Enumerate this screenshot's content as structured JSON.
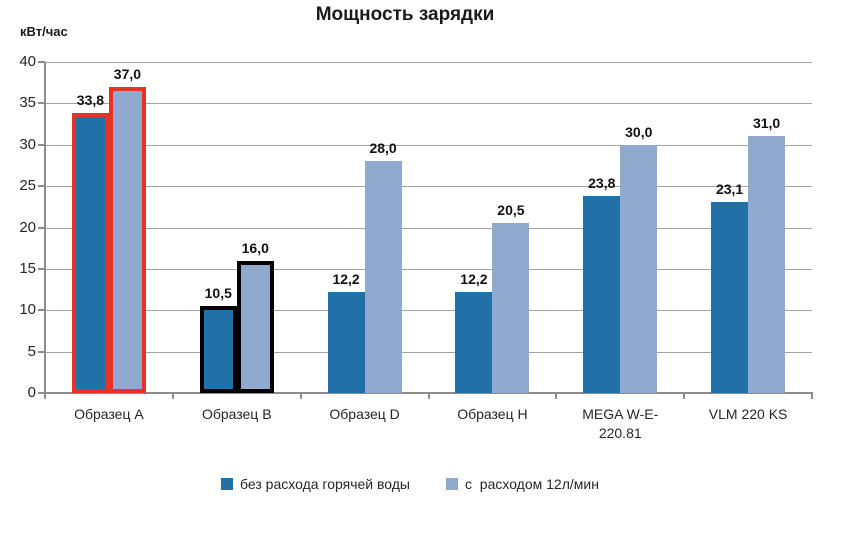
{
  "chart_data": {
    "type": "bar",
    "title": "Мощность зарядки",
    "ylabel": "кВт/час",
    "xlabel": "",
    "ylim": [
      0,
      40
    ],
    "ytick_step": 5,
    "grid": true,
    "legend_position": "bottom",
    "categories": [
      "Образец A",
      "Образец B",
      "Образец D",
      "Образец H",
      "MEGA W-E-\n220.81",
      "VLM 220 KS"
    ],
    "series": [
      {
        "name": "без расхода горячей воды",
        "color": "#2271A6",
        "values": [
          33.8,
          10.5,
          12.2,
          12.2,
          23.8,
          23.1
        ]
      },
      {
        "name": "с  расходом 12л/мин",
        "color": "#90AACF",
        "values": [
          37.0,
          16.0,
          28.0,
          20.5,
          30.0,
          31.0
        ]
      }
    ],
    "highlights": [
      {
        "category_index": 0,
        "outline_color": "#E9312B"
      },
      {
        "category_index": 1,
        "outline_color": "#000000"
      }
    ],
    "colors": {
      "gridline": "#A3A3A3",
      "axis": "#8C8C8C",
      "title_text": "#1A1A1A",
      "tick_text": "#262626",
      "data_label_text": "#111111"
    }
  }
}
